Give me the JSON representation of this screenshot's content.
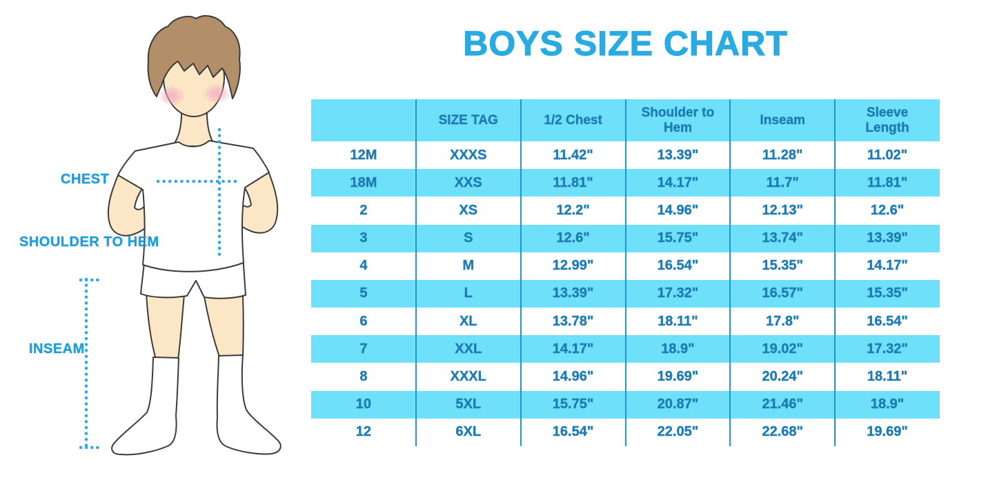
{
  "title": "BOYS SIZE CHART",
  "figure": {
    "chest_label": "CHEST",
    "shoulder_to_hem_label": "SHOULDER TO HEM",
    "inseam_label": "INSEAM"
  },
  "colors": {
    "title_blue": "#29abe2",
    "label_blue": "#1f9ed9",
    "band_cyan": "#6fe0f9",
    "column_divider_blue": "#2095c8",
    "table_text_blue": "#1e7cb4",
    "dotted_line_cyan": "#29abe2"
  },
  "chart_data": {
    "type": "table",
    "title": "BOYS SIZE CHART",
    "columns": [
      "",
      "SIZE TAG",
      "1/2 Chest",
      "Shoulder to Hem",
      "Inseam",
      "Sleeve Length"
    ],
    "rows": [
      [
        "12M",
        "XXXS",
        "11.42\"",
        "13.39\"",
        "11.28\"",
        "11.02\""
      ],
      [
        "18M",
        "XXS",
        "11.81\"",
        "14.17\"",
        "11.7\"",
        "11.81\""
      ],
      [
        "2",
        "XS",
        "12.2\"",
        "14.96\"",
        "12.13\"",
        "12.6\""
      ],
      [
        "3",
        "S",
        "12.6\"",
        "15.75\"",
        "13.74\"",
        "13.39\""
      ],
      [
        "4",
        "M",
        "12.99\"",
        "16.54\"",
        "15.35\"",
        "14.17\""
      ],
      [
        "5",
        "L",
        "13.39\"",
        "17.32\"",
        "16.57\"",
        "15.35\""
      ],
      [
        "6",
        "XL",
        "13.78\"",
        "18.11\"",
        "17.8\"",
        "16.54\""
      ],
      [
        "7",
        "XXL",
        "14.17\"",
        "18.9\"",
        "19.02\"",
        "17.32\""
      ],
      [
        "8",
        "XXXL",
        "14.96\"",
        "19.69\"",
        "20.24\"",
        "18.11\""
      ],
      [
        "10",
        "5XL",
        "15.75\"",
        "20.87\"",
        "21.46\"",
        "18.9\""
      ],
      [
        "12",
        "6XL",
        "16.54\"",
        "22.05\"",
        "22.68\"",
        "19.69\""
      ]
    ],
    "annotations": [
      "CHEST",
      "SHOULDER TO HEM",
      "INSEAM"
    ],
    "layout": {
      "stripe_pattern": "alternating white/cyan rows",
      "header_fill": "cyan",
      "grid": "vertical column dividers only"
    }
  }
}
